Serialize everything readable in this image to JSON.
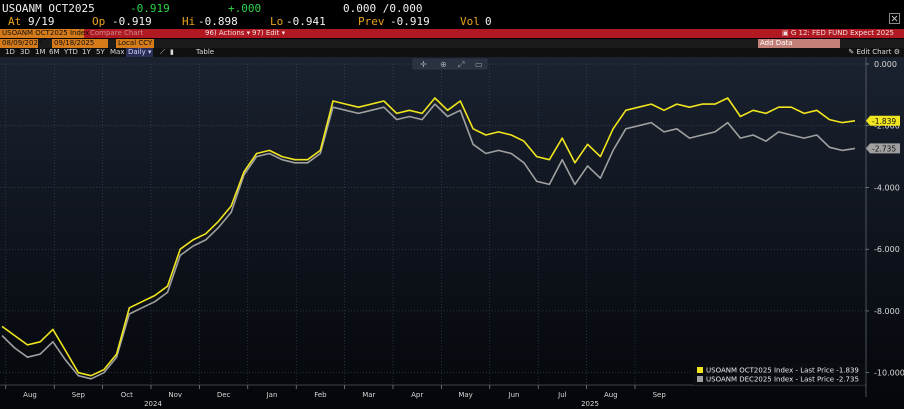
{
  "quote": {
    "ticker": "USOANM OCT2025",
    "last": "-0.919",
    "change": "+.000",
    "bid_ask": "0.000 /0.000",
    "at_label": "At",
    "at_value": "9/19",
    "open_label": "Op",
    "open_value": "-0.919",
    "high_label": "Hi",
    "high_value": "-0.898",
    "low_label": "Lo",
    "low_value": "-0.941",
    "prev_label": "Prev",
    "prev_value": "-0.919",
    "vol_label": "Vol",
    "vol_value": "0"
  },
  "toolbar": {
    "security": "USOANM OCT2025 Index",
    "compare": "Compare Chart",
    "actions": "Actions",
    "edit": "Edit",
    "screen_title": "G 12: FED FUND Expect 2025",
    "date_start": "08/09/2024",
    "date_end": "09/18/2025",
    "currency": "Local CCY",
    "add_data": "Add Data",
    "periods": [
      "1D",
      "3D",
      "1M",
      "6M",
      "YTD",
      "1Y",
      "5Y",
      "Max"
    ],
    "frequency": "Daily",
    "table": "Table",
    "edit_chart": "Edit Chart"
  },
  "colors": {
    "series1": "#f0e51e",
    "series2": "#a0a0a0",
    "background_top": "#1a2230",
    "background_bottom": "#04060a",
    "title_bar": "#b01822",
    "field": "#d57b1a"
  },
  "chart_data": {
    "type": "line",
    "y_ticks": [
      "0.000",
      "-2.000",
      "-4.000",
      "-6.000",
      "-8.000",
      "-10.000"
    ],
    "ylim": [
      -10.4,
      0
    ],
    "x_ticks": [
      "Aug",
      "Sep",
      "Oct",
      "Nov",
      "Dec",
      "Jan",
      "Feb",
      "Mar",
      "Apr",
      "May",
      "Jun",
      "Jul",
      "Aug",
      "Sep"
    ],
    "year_labels": [
      "2024",
      "2025"
    ],
    "grid": true,
    "legend_position": "bottom-right",
    "last_values": [
      "-1.839",
      "-2.735"
    ],
    "series": [
      {
        "name": "USOANM OCT2025 Index - Last Price -1.839",
        "values": [
          -8.5,
          -8.8,
          -9.1,
          -9.0,
          -8.6,
          -9.3,
          -10.0,
          -10.1,
          -9.9,
          -9.4,
          -7.9,
          -7.7,
          -7.5,
          -7.2,
          -6.0,
          -5.7,
          -5.5,
          -5.1,
          -4.6,
          -3.5,
          -2.9,
          -2.8,
          -3.0,
          -3.1,
          -3.1,
          -2.8,
          -1.2,
          -1.3,
          -1.4,
          -1.3,
          -1.2,
          -1.6,
          -1.5,
          -1.6,
          -1.1,
          -1.5,
          -1.2,
          -2.1,
          -2.3,
          -2.2,
          -2.3,
          -2.5,
          -3.0,
          -3.1,
          -2.4,
          -3.2,
          -2.6,
          -3.0,
          -2.1,
          -1.5,
          -1.4,
          -1.3,
          -1.5,
          -1.3,
          -1.4,
          -1.3,
          -1.3,
          -1.1,
          -1.7,
          -1.5,
          -1.6,
          -1.4,
          -1.4,
          -1.6,
          -1.5,
          -1.8,
          -1.9,
          -1.84
        ],
        "color": "#f0e51e"
      },
      {
        "name": "USOANM DEC2025 Index - Last Price -2.735",
        "values": [
          -8.8,
          -9.2,
          -9.5,
          -9.4,
          -9.0,
          -9.6,
          -10.1,
          -10.2,
          -10.0,
          -9.5,
          -8.1,
          -7.9,
          -7.7,
          -7.4,
          -6.2,
          -5.9,
          -5.7,
          -5.3,
          -4.8,
          -3.6,
          -3.0,
          -2.9,
          -3.1,
          -3.2,
          -3.2,
          -2.9,
          -1.4,
          -1.5,
          -1.6,
          -1.5,
          -1.4,
          -1.8,
          -1.7,
          -1.8,
          -1.3,
          -1.7,
          -1.5,
          -2.6,
          -2.9,
          -2.8,
          -2.9,
          -3.2,
          -3.8,
          -3.9,
          -3.1,
          -3.9,
          -3.3,
          -3.7,
          -2.8,
          -2.1,
          -2.0,
          -1.9,
          -2.2,
          -2.1,
          -2.4,
          -2.3,
          -2.2,
          -1.9,
          -2.4,
          -2.3,
          -2.5,
          -2.2,
          -2.3,
          -2.4,
          -2.3,
          -2.7,
          -2.8,
          -2.735
        ],
        "color": "#a0a0a0"
      }
    ]
  }
}
